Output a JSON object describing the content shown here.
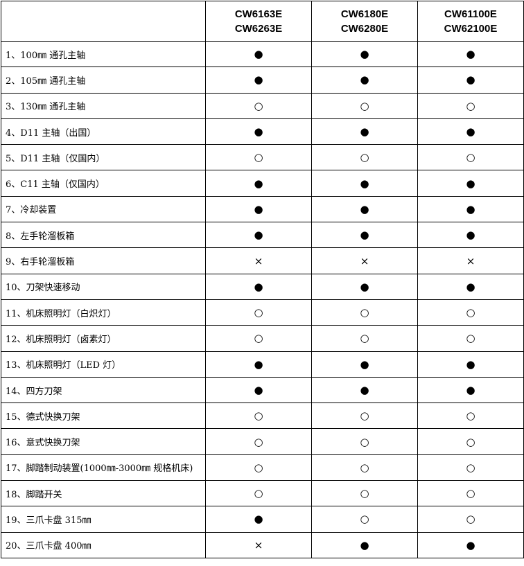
{
  "columns": [
    {
      "line1": "CW6163E",
      "line2": "CW6263E"
    },
    {
      "line1": "CW6180E",
      "line2": "CW6280E"
    },
    {
      "line1": "CW61100E",
      "line2": "CW62100E"
    }
  ],
  "legend_symbols": {
    "standard": "●",
    "optional": "○",
    "unavailable": "×"
  },
  "rows": [
    {
      "label": "1、100㎜ 通孔主轴",
      "values": [
        "●",
        "●",
        "●"
      ]
    },
    {
      "label": "2、105㎜ 通孔主轴",
      "values": [
        "●",
        "●",
        "●"
      ]
    },
    {
      "label": "3、130㎜ 通孔主轴",
      "values": [
        "○",
        "○",
        "○"
      ]
    },
    {
      "label": "4、D11 主轴（出国）",
      "values": [
        "●",
        "●",
        "●"
      ]
    },
    {
      "label": "5、D11 主轴（仅国内）",
      "values": [
        "○",
        "○",
        "○"
      ]
    },
    {
      "label": "6、C11 主轴（仅国内）",
      "values": [
        "●",
        "●",
        "●"
      ]
    },
    {
      "label": "7、冷却装置",
      "values": [
        "●",
        "●",
        "●"
      ]
    },
    {
      "label": "8、左手轮溜板箱",
      "values": [
        "●",
        "●",
        "●"
      ]
    },
    {
      "label": "9、右手轮溜板箱",
      "values": [
        "×",
        "×",
        "×"
      ]
    },
    {
      "label": "10、刀架快速移动",
      "values": [
        "●",
        "●",
        "●"
      ]
    },
    {
      "label": "11、机床照明灯（白炽灯）",
      "values": [
        "○",
        "○",
        "○"
      ]
    },
    {
      "label": "12、机床照明灯（卤素灯）",
      "values": [
        "○",
        "○",
        "○"
      ]
    },
    {
      "label": "13、机床照明灯（LED 灯）",
      "values": [
        "●",
        "●",
        "●"
      ]
    },
    {
      "label": "14、四方刀架",
      "values": [
        "●",
        "●",
        "●"
      ]
    },
    {
      "label": "15、德式快换刀架",
      "values": [
        "○",
        "○",
        "○"
      ]
    },
    {
      "label": "16、意式快换刀架",
      "values": [
        "○",
        "○",
        "○"
      ]
    },
    {
      "label": "17、脚踏制动装置(1000㎜-3000㎜ 规格机床)",
      "values": [
        "○",
        "○",
        "○"
      ]
    },
    {
      "label": "18、脚踏开关",
      "values": [
        "○",
        "○",
        "○"
      ]
    },
    {
      "label": "19、三爪卡盘 315㎜",
      "values": [
        "●",
        "○",
        "○"
      ]
    },
    {
      "label": "20、三爪卡盘 400㎜",
      "values": [
        "×",
        "●",
        "●"
      ]
    }
  ]
}
